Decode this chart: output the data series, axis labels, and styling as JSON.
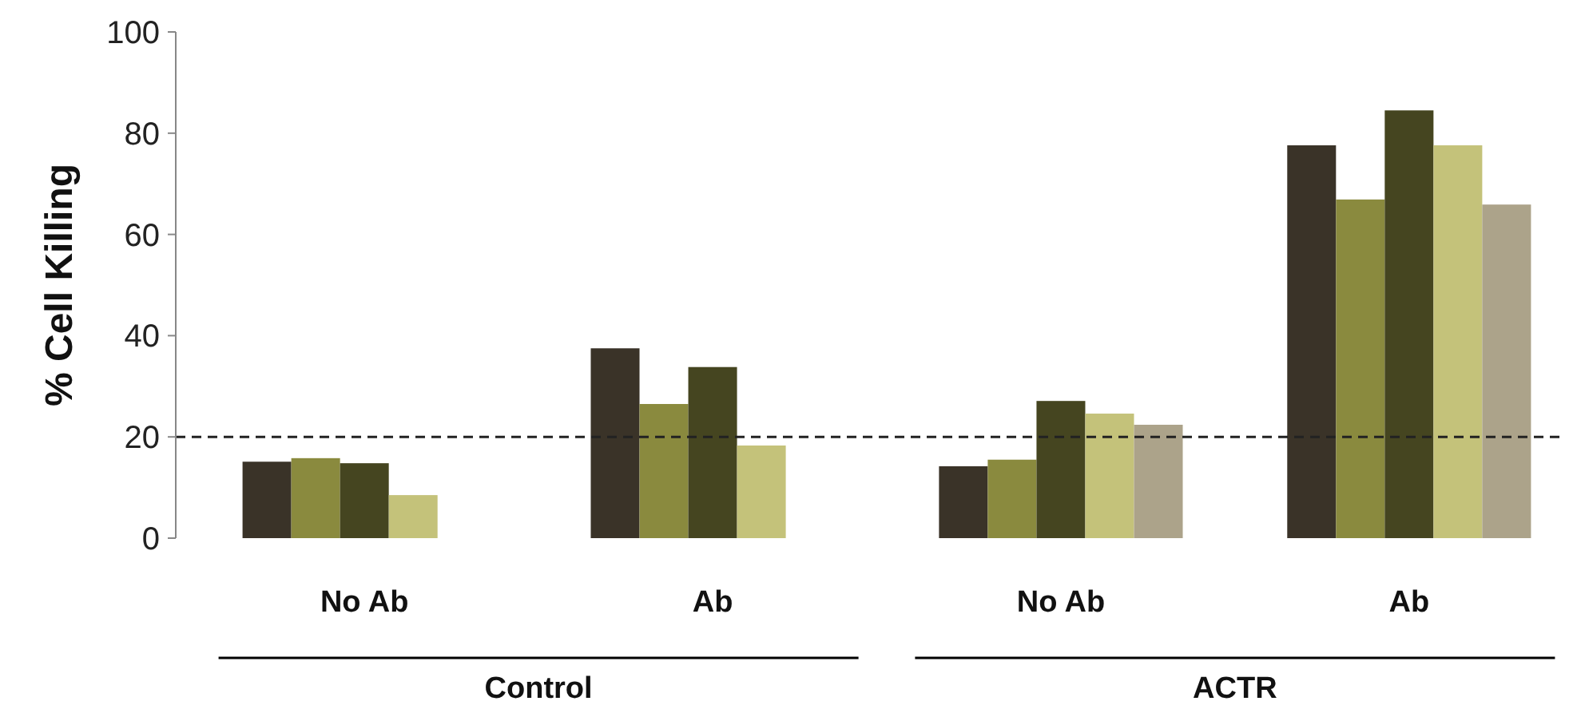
{
  "chart_data": {
    "type": "bar",
    "ylabel": "% Cell Killing",
    "categories": [
      "No Ab",
      "Ab",
      "No Ab",
      "Ab"
    ],
    "series": [
      {
        "color": "#3a3328",
        "values": [
          15.1,
          37.5,
          14.2,
          77.6
        ]
      },
      {
        "color": "#8a8a3e",
        "values": [
          15.8,
          26.5,
          15.5,
          66.9
        ]
      },
      {
        "color": "#454520",
        "values": [
          14.8,
          33.8,
          27.1,
          84.5
        ]
      },
      {
        "color": "#c4c27a",
        "values": [
          8.5,
          18.3,
          24.6,
          77.6
        ]
      },
      {
        "color": "#aca38a",
        "values": [
          null,
          null,
          22.4,
          65.9
        ]
      }
    ],
    "ylim": [
      0,
      100
    ],
    "yticks": [
      0,
      20,
      40,
      60,
      80,
      100
    ],
    "ref_lines": [
      {
        "axis": "y",
        "value": 20,
        "color": "#222222",
        "line_style": "dashed"
      }
    ],
    "annotations": [
      "Control",
      "ACTR"
    ]
  }
}
